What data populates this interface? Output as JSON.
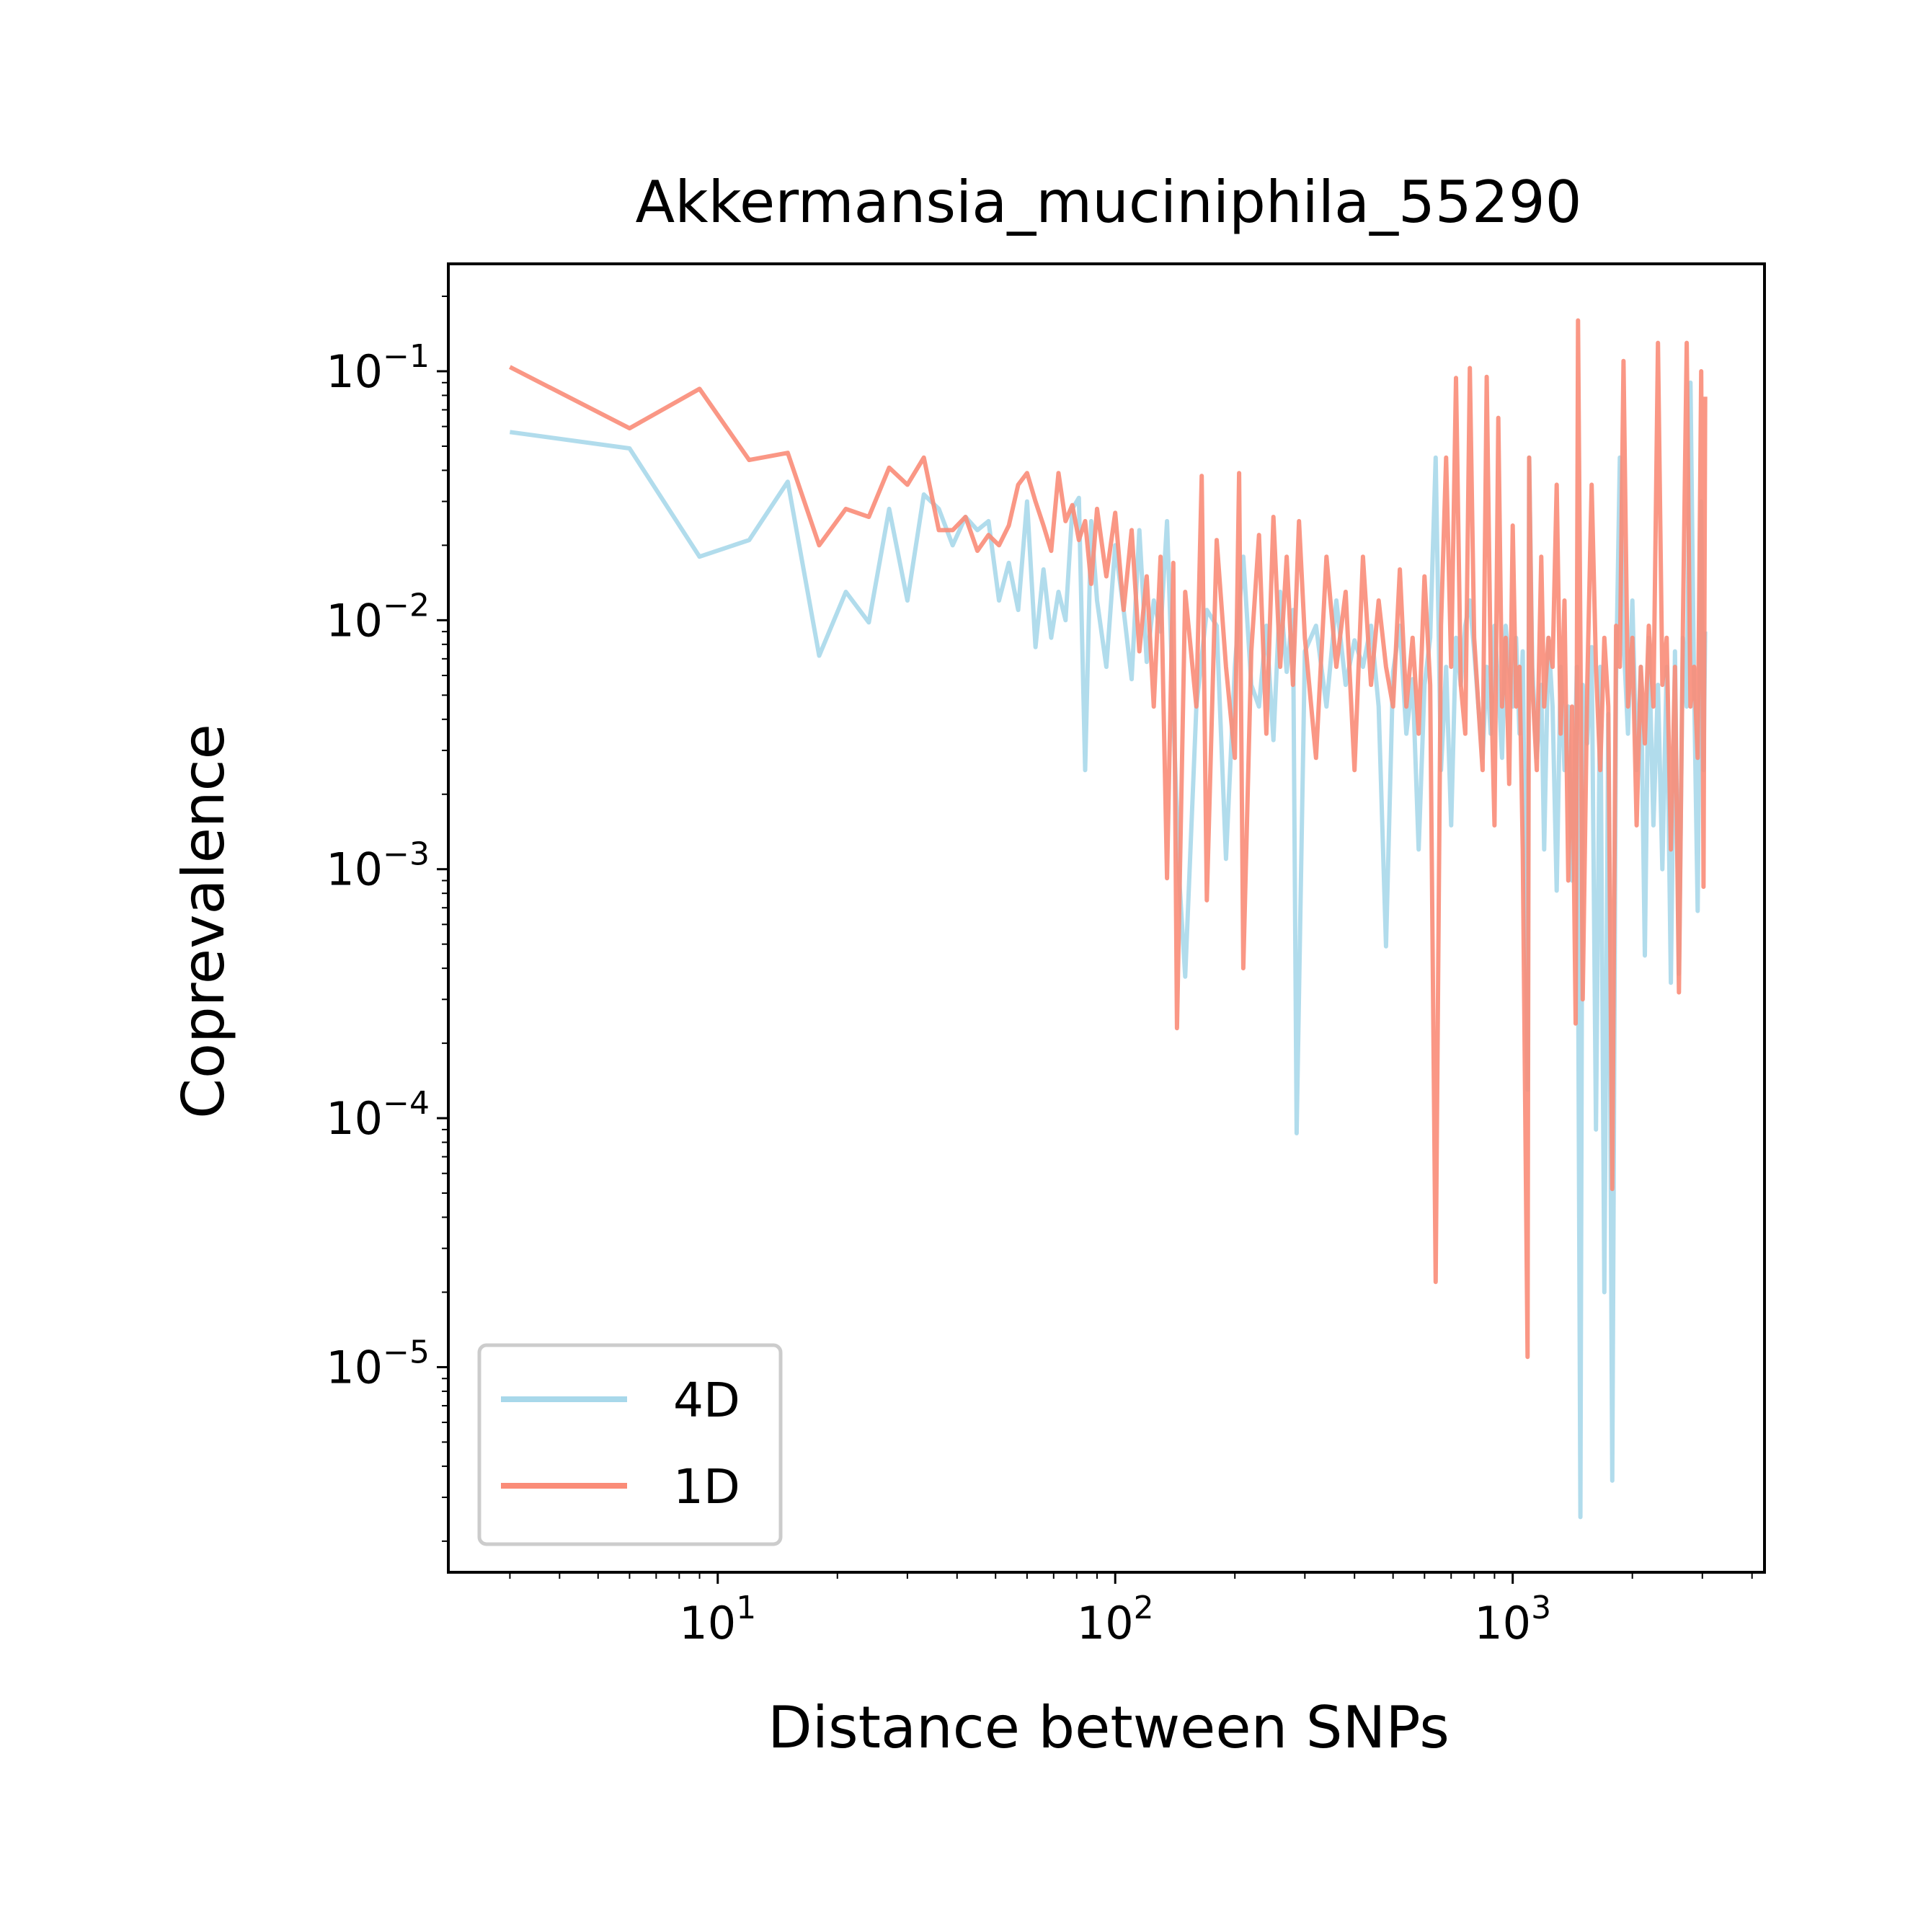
{
  "chart_data": {
    "type": "line",
    "title": "Akkermansia_muciniphila_55290",
    "xlabel": "Distance between SNPs",
    "ylabel": "Coprevalence",
    "xscale": "log",
    "yscale": "log",
    "xlim": [
      2.1,
      4300
    ],
    "ylim": [
      1.5e-06,
      0.27
    ],
    "x_ticks": [
      {
        "base": "10",
        "exp": "1",
        "value": 10
      },
      {
        "base": "10",
        "exp": "2",
        "value": 100
      },
      {
        "base": "10",
        "exp": "3",
        "value": 1000
      }
    ],
    "y_ticks": [
      {
        "base": "10",
        "exp": "−1",
        "value": 0.1
      },
      {
        "base": "10",
        "exp": "−2",
        "value": 0.01
      },
      {
        "base": "10",
        "exp": "−3",
        "value": 0.001
      },
      {
        "base": "10",
        "exp": "−4",
        "value": 0.0001
      },
      {
        "base": "10",
        "exp": "−5",
        "value": 1e-05
      }
    ],
    "grid": false,
    "legend_position": "lower-left",
    "series": [
      {
        "name": "4D",
        "color": "#a8d8ea",
        "points": [
          [
            3,
            0.057
          ],
          [
            6,
            0.049
          ],
          [
            9,
            0.018
          ],
          [
            12,
            0.021
          ],
          [
            15,
            0.036
          ],
          [
            18,
            0.0072
          ],
          [
            21,
            0.013
          ],
          [
            24,
            0.0098
          ],
          [
            27,
            0.028
          ],
          [
            30,
            0.012
          ],
          [
            33,
            0.032
          ],
          [
            36,
            0.028
          ],
          [
            39,
            0.02
          ],
          [
            42,
            0.026
          ],
          [
            45,
            0.023
          ],
          [
            48,
            0.025
          ],
          [
            51,
            0.012
          ],
          [
            54,
            0.017
          ],
          [
            57,
            0.011
          ],
          [
            60,
            0.03
          ],
          [
            63,
            0.0078
          ],
          [
            66,
            0.016
          ],
          [
            69,
            0.0085
          ],
          [
            72,
            0.013
          ],
          [
            75,
            0.01
          ],
          [
            78,
            0.028
          ],
          [
            81,
            0.031
          ],
          [
            84,
            0.0025
          ],
          [
            87,
            0.025
          ],
          [
            90,
            0.012
          ],
          [
            95,
            0.0065
          ],
          [
            100,
            0.02
          ],
          [
            105,
            0.011
          ],
          [
            110,
            0.0058
          ],
          [
            115,
            0.023
          ],
          [
            120,
            0.0068
          ],
          [
            125,
            0.012
          ],
          [
            130,
            0.009
          ],
          [
            135,
            0.025
          ],
          [
            140,
            0.0042
          ],
          [
            145,
            0.0009
          ],
          [
            150,
            0.00037
          ],
          [
            160,
            0.0045
          ],
          [
            170,
            0.011
          ],
          [
            180,
            0.0095
          ],
          [
            190,
            0.0011
          ],
          [
            200,
            0.0065
          ],
          [
            210,
            0.018
          ],
          [
            220,
            0.0055
          ],
          [
            230,
            0.0045
          ],
          [
            240,
            0.0095
          ],
          [
            250,
            0.0033
          ],
          [
            260,
            0.013
          ],
          [
            270,
            0.0062
          ],
          [
            280,
            0.011
          ],
          [
            286,
            8.7e-05
          ],
          [
            300,
            0.0075
          ],
          [
            320,
            0.0095
          ],
          [
            340,
            0.0045
          ],
          [
            360,
            0.012
          ],
          [
            380,
            0.0055
          ],
          [
            400,
            0.0083
          ],
          [
            420,
            0.0065
          ],
          [
            440,
            0.0095
          ],
          [
            460,
            0.0045
          ],
          [
            480,
            0.00049
          ],
          [
            500,
            0.0062
          ],
          [
            520,
            0.0095
          ],
          [
            540,
            0.0035
          ],
          [
            560,
            0.0058
          ],
          [
            580,
            0.0012
          ],
          [
            600,
            0.0055
          ],
          [
            620,
            0.0085
          ],
          [
            640,
            0.045
          ],
          [
            660,
            0.0025
          ],
          [
            680,
            0.0065
          ],
          [
            700,
            0.0015
          ],
          [
            720,
            0.0085
          ],
          [
            740,
            0.0055
          ],
          [
            760,
            0.0095
          ],
          [
            780,
            0.012
          ],
          [
            800,
            0.0075
          ],
          [
            820,
            0.0045
          ],
          [
            840,
            0.0028
          ],
          [
            860,
            0.0065
          ],
          [
            880,
            0.0035
          ],
          [
            900,
            0.0095
          ],
          [
            920,
            0.0055
          ],
          [
            940,
            0.0028
          ],
          [
            960,
            0.0095
          ],
          [
            980,
            0.0065
          ],
          [
            1000,
            0.0045
          ],
          [
            1020,
            0.0085
          ],
          [
            1040,
            0.0035
          ],
          [
            1060,
            0.0075
          ],
          [
            1090,
            0.00013
          ],
          [
            1100,
            0.045
          ],
          [
            1120,
            0.0065
          ],
          [
            1150,
            0.0028
          ],
          [
            1180,
            0.0055
          ],
          [
            1200,
            0.0012
          ],
          [
            1230,
            0.0085
          ],
          [
            1260,
            0.0045
          ],
          [
            1290,
            0.00082
          ],
          [
            1320,
            0.0065
          ],
          [
            1350,
            0.0025
          ],
          [
            1380,
            0.0045
          ],
          [
            1410,
            0.0009
          ],
          [
            1450,
            0.0065
          ],
          [
            1480,
            2.5e-06
          ],
          [
            1500,
            0.0055
          ],
          [
            1540,
            0.0032
          ],
          [
            1580,
            0.0078
          ],
          [
            1620,
            9e-05
          ],
          [
            1660,
            0.0065
          ],
          [
            1700,
            2e-05
          ],
          [
            1740,
            0.0042
          ],
          [
            1780,
            3.5e-06
          ],
          [
            1820,
            0.0058
          ],
          [
            1860,
            0.045
          ],
          [
            1900,
            0.0085
          ],
          [
            1950,
            0.0035
          ],
          [
            2000,
            0.012
          ],
          [
            2050,
            0.0025
          ],
          [
            2100,
            0.0065
          ],
          [
            2150,
            0.00045
          ],
          [
            2200,
            0.0085
          ],
          [
            2260,
            0.0015
          ],
          [
            2320,
            0.0055
          ],
          [
            2380,
            0.001
          ],
          [
            2440,
            0.0065
          ],
          [
            2500,
            0.00035
          ],
          [
            2560,
            0.0075
          ],
          [
            2620,
            0.00038
          ],
          [
            2680,
            0.0085
          ],
          [
            2740,
            0.0045
          ],
          [
            2800,
            0.09
          ],
          [
            2860,
            0.0055
          ],
          [
            2920,
            0.00068
          ],
          [
            2980,
            0.03
          ],
          [
            3020,
            0.0025
          ],
          [
            3050,
            0.009
          ]
        ]
      },
      {
        "name": "1D",
        "color": "#fa8c78",
        "points": [
          [
            3,
            0.104
          ],
          [
            6,
            0.059
          ],
          [
            9,
            0.085
          ],
          [
            12,
            0.044
          ],
          [
            15,
            0.047
          ],
          [
            18,
            0.02
          ],
          [
            21,
            0.028
          ],
          [
            24,
            0.026
          ],
          [
            27,
            0.041
          ],
          [
            30,
            0.035
          ],
          [
            33,
            0.045
          ],
          [
            36,
            0.023
          ],
          [
            39,
            0.023
          ],
          [
            42,
            0.026
          ],
          [
            45,
            0.019
          ],
          [
            48,
            0.022
          ],
          [
            51,
            0.02
          ],
          [
            54,
            0.024
          ],
          [
            57,
            0.035
          ],
          [
            60,
            0.039
          ],
          [
            63,
            0.03
          ],
          [
            66,
            0.024
          ],
          [
            69,
            0.019
          ],
          [
            72,
            0.039
          ],
          [
            75,
            0.025
          ],
          [
            78,
            0.029
          ],
          [
            81,
            0.021
          ],
          [
            84,
            0.025
          ],
          [
            87,
            0.014
          ],
          [
            90,
            0.028
          ],
          [
            95,
            0.015
          ],
          [
            100,
            0.027
          ],
          [
            105,
            0.011
          ],
          [
            110,
            0.023
          ],
          [
            115,
            0.0075
          ],
          [
            120,
            0.015
          ],
          [
            125,
            0.0045
          ],
          [
            130,
            0.018
          ],
          [
            135,
            0.00092
          ],
          [
            140,
            0.017
          ],
          [
            143,
            0.00023
          ],
          [
            150,
            0.013
          ],
          [
            160,
            0.0045
          ],
          [
            165,
            0.038
          ],
          [
            170,
            0.00075
          ],
          [
            180,
            0.021
          ],
          [
            190,
            0.0065
          ],
          [
            200,
            0.0028
          ],
          [
            205,
            0.039
          ],
          [
            210,
            0.0004
          ],
          [
            220,
            0.0075
          ],
          [
            230,
            0.022
          ],
          [
            240,
            0.0035
          ],
          [
            250,
            0.026
          ],
          [
            260,
            0.0065
          ],
          [
            270,
            0.018
          ],
          [
            280,
            0.0055
          ],
          [
            290,
            0.025
          ],
          [
            300,
            0.0085
          ],
          [
            320,
            0.0028
          ],
          [
            340,
            0.018
          ],
          [
            360,
            0.0065
          ],
          [
            380,
            0.013
          ],
          [
            400,
            0.0025
          ],
          [
            420,
            0.018
          ],
          [
            440,
            0.0055
          ],
          [
            460,
            0.012
          ],
          [
            480,
            0.0065
          ],
          [
            500,
            0.0045
          ],
          [
            520,
            0.016
          ],
          [
            540,
            0.0045
          ],
          [
            560,
            0.0085
          ],
          [
            580,
            0.0035
          ],
          [
            600,
            0.015
          ],
          [
            620,
            0.0055
          ],
          [
            640,
            2.2e-05
          ],
          [
            660,
            0.0095
          ],
          [
            680,
            0.045
          ],
          [
            700,
            0.0065
          ],
          [
            720,
            0.094
          ],
          [
            740,
            0.0055
          ],
          [
            760,
            0.0035
          ],
          [
            780,
            0.103
          ],
          [
            800,
            0.0085
          ],
          [
            820,
            0.0045
          ],
          [
            840,
            0.0025
          ],
          [
            860,
            0.095
          ],
          [
            880,
            0.0065
          ],
          [
            900,
            0.0015
          ],
          [
            920,
            0.065
          ],
          [
            940,
            0.0045
          ],
          [
            960,
            0.0085
          ],
          [
            980,
            0.0022
          ],
          [
            1000,
            0.024
          ],
          [
            1020,
            0.0045
          ],
          [
            1040,
            0.0065
          ],
          [
            1060,
            0.0012
          ],
          [
            1090,
            1.1e-05
          ],
          [
            1100,
            0.045
          ],
          [
            1120,
            0.0055
          ],
          [
            1150,
            0.0025
          ],
          [
            1180,
            0.018
          ],
          [
            1200,
            0.0045
          ],
          [
            1230,
            0.0085
          ],
          [
            1260,
            0.0065
          ],
          [
            1290,
            0.035
          ],
          [
            1320,
            0.0035
          ],
          [
            1350,
            0.012
          ],
          [
            1380,
            0.0009
          ],
          [
            1410,
            0.0045
          ],
          [
            1440,
            0.00024
          ],
          [
            1460,
            0.16
          ],
          [
            1480,
            0.0085
          ],
          [
            1500,
            0.0003
          ],
          [
            1540,
            0.0055
          ],
          [
            1580,
            0.035
          ],
          [
            1620,
            0.0065
          ],
          [
            1660,
            0.0025
          ],
          [
            1700,
            0.0085
          ],
          [
            1740,
            0.0045
          ],
          [
            1780,
            5.2e-05
          ],
          [
            1820,
            0.0095
          ],
          [
            1860,
            0.0065
          ],
          [
            1900,
            0.11
          ],
          [
            1950,
            0.0045
          ],
          [
            2000,
            0.0085
          ],
          [
            2050,
            0.0015
          ],
          [
            2100,
            0.0065
          ],
          [
            2150,
            0.0032
          ],
          [
            2200,
            0.0095
          ],
          [
            2260,
            0.0045
          ],
          [
            2320,
            0.13
          ],
          [
            2380,
            0.0055
          ],
          [
            2440,
            0.0085
          ],
          [
            2500,
            0.0012
          ],
          [
            2560,
            0.0065
          ],
          [
            2620,
            0.00032
          ],
          [
            2680,
            0.0095
          ],
          [
            2740,
            0.13
          ],
          [
            2800,
            0.0045
          ],
          [
            2860,
            0.0065
          ],
          [
            2920,
            0.0028
          ],
          [
            2980,
            0.1
          ],
          [
            3020,
            0.00085
          ],
          [
            3050,
            0.079
          ]
        ]
      }
    ]
  }
}
